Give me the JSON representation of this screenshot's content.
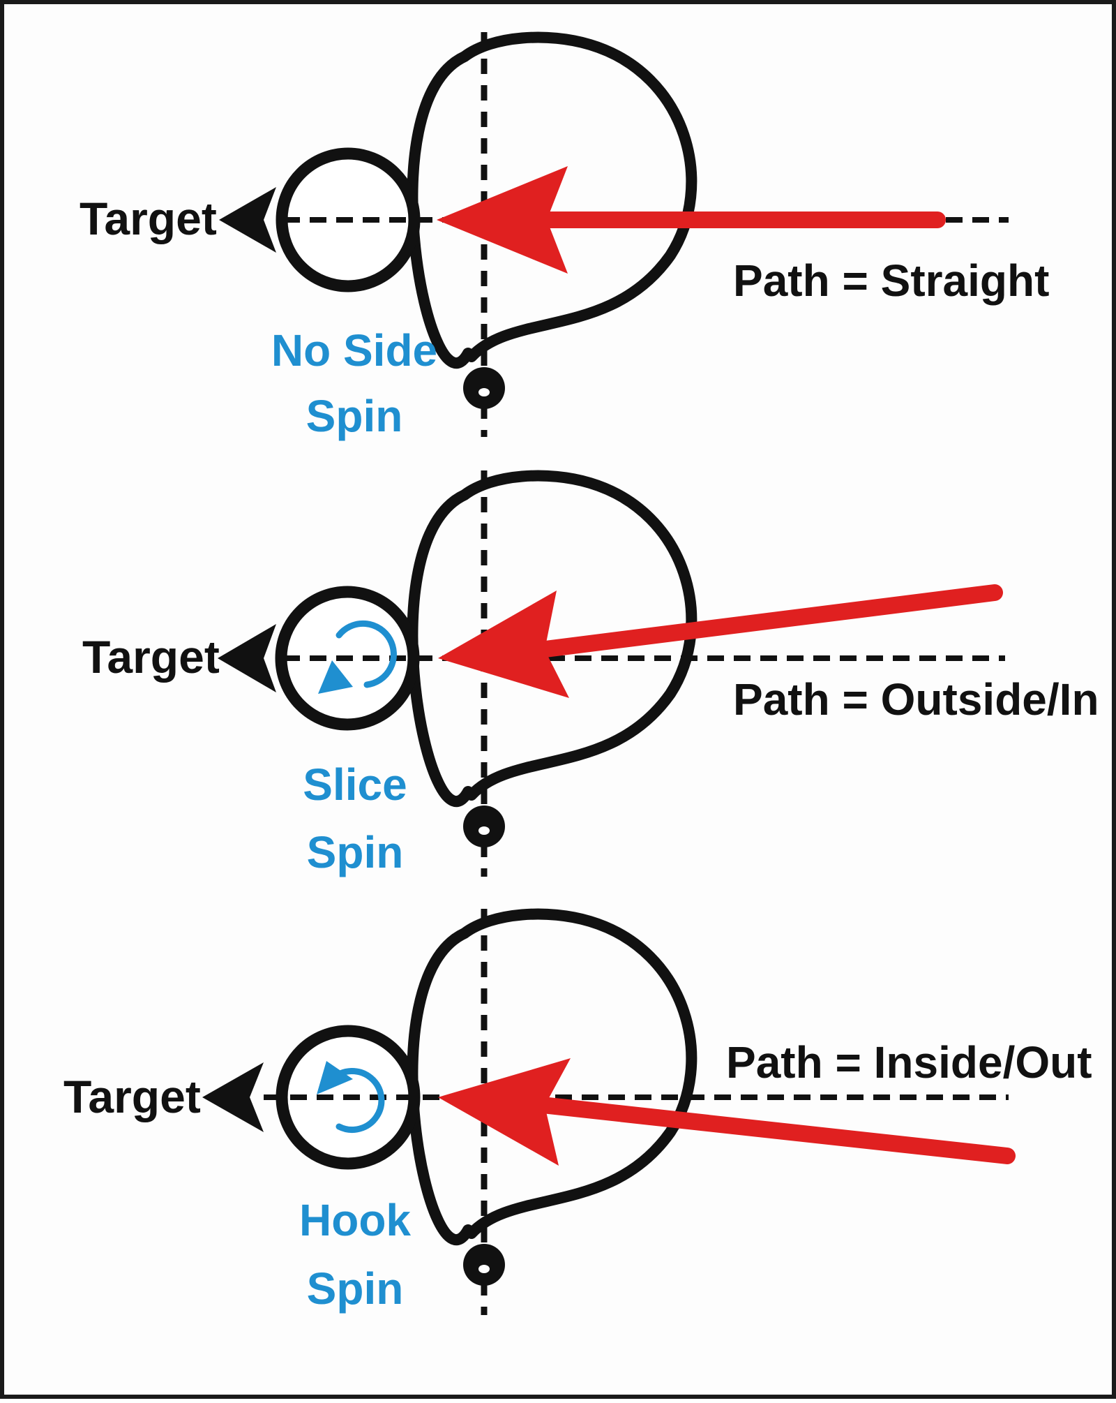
{
  "colors": {
    "outline": "#111111",
    "arrow": "#e02020",
    "spin": "#1f8fd0",
    "frame": "#1a1a1a",
    "background": "#fdfdfd"
  },
  "panels": [
    {
      "target_label": "Target",
      "path_label": "Path = Straight",
      "spin_line1": "No Side",
      "spin_line2": "Spin",
      "spin_icon": "none"
    },
    {
      "target_label": "Target",
      "path_label": "Path = Outside/In",
      "spin_line1": "Slice",
      "spin_line2": "Spin",
      "spin_icon": "slice-spin-icon"
    },
    {
      "target_label": "Target",
      "path_label": "Path = Inside/Out",
      "spin_line1": "Hook",
      "spin_line2": "Spin",
      "spin_icon": "hook-spin-icon"
    }
  ]
}
